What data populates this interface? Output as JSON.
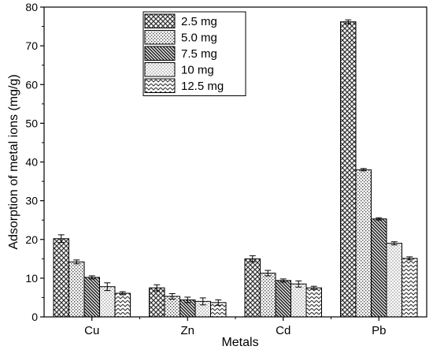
{
  "chart_data": {
    "type": "bar",
    "title": "",
    "xlabel": "Metals",
    "ylabel": "Adsorption of metal ions (mg/g)",
    "categories": [
      "Cu",
      "Zn",
      "Cd",
      "Pb"
    ],
    "ylim": [
      0,
      80
    ],
    "yticks": [
      "0",
      "10",
      "20",
      "30",
      "40",
      "50",
      "60",
      "70",
      "80"
    ],
    "grid": false,
    "legend_position": "top-center",
    "series": [
      {
        "name": "2.5 mg",
        "pattern": "crosshatch",
        "values": [
          20.2,
          7.5,
          15.0,
          76.2
        ],
        "errors": [
          1.0,
          0.8,
          0.8,
          0.5
        ]
      },
      {
        "name": "5.0 mg",
        "pattern": "dots",
        "values": [
          14.2,
          5.3,
          11.3,
          38.0
        ],
        "errors": [
          0.5,
          0.7,
          0.7,
          0.3
        ]
      },
      {
        "name": "7.5 mg",
        "pattern": "diagonal",
        "values": [
          10.2,
          4.4,
          9.4,
          25.3
        ],
        "errors": [
          0.4,
          0.7,
          0.4,
          0.3
        ]
      },
      {
        "name": "10 mg",
        "pattern": "fine-dots",
        "values": [
          7.8,
          4.0,
          8.5,
          19.0
        ],
        "errors": [
          1.0,
          0.9,
          0.8,
          0.4
        ]
      },
      {
        "name": "12.5 mg",
        "pattern": "zigzag",
        "values": [
          6.1,
          3.7,
          7.5,
          15.1
        ],
        "errors": [
          0.4,
          0.7,
          0.4,
          0.4
        ]
      }
    ]
  }
}
